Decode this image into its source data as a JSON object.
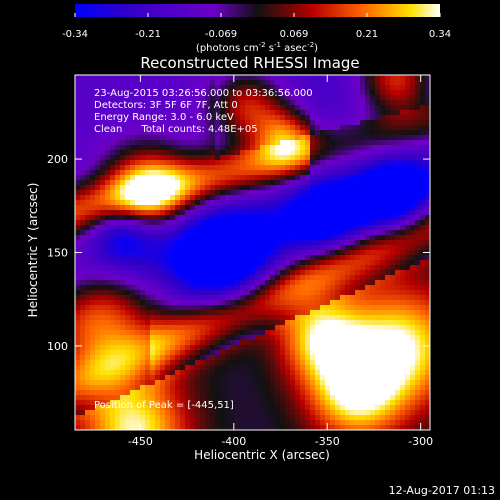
{
  "chart_data": {
    "type": "heatmap",
    "title": "Reconstructed RHESSI Image",
    "xlabel": "Heliocentric X (arcsec)",
    "ylabel": "Heliocentric Y (arcsec)",
    "xlim": [
      -485,
      -295
    ],
    "ylim": [
      55,
      245
    ],
    "xticks": [
      -450,
      -400,
      -350,
      -300
    ],
    "yticks": [
      100,
      150,
      200
    ],
    "colorbar": {
      "min": -0.34,
      "max": 0.34,
      "ticks": [
        "-0.34",
        "-0.21",
        "-0.069",
        "0.069",
        "0.21",
        "0.34"
      ],
      "label_base": "(photons cm",
      "label_exp1": "-2",
      "label_mid": " s",
      "label_exp2": "-1",
      "label_end": " asec",
      "label_exp3": "-2",
      "label_close": ")",
      "colormap": "purple-blue-red-yellow-white"
    },
    "info_lines": [
      "23-Aug-2015 03:26:56.000 to 03:36:56.000",
      "Detectors: 3F 5F 6F 7F, Att 0",
      "Energy Range: 3.0 - 6.0 keV",
      "Clean      Total counts: 4.48E+05"
    ],
    "peak_annotation": "Position of Peak = [-445,51]",
    "features": {
      "bright_upper_left_lobes": [
        [
          -447,
          185,
          16,
          0.34
        ],
        [
          -393,
          228,
          14,
          0.3
        ],
        [
          -373,
          213,
          11,
          0.27
        ],
        [
          -313,
          243,
          14,
          0.32
        ]
      ],
      "bright_lower_right_lobes": [
        [
          -473,
          115,
          22,
          0.34
        ],
        [
          -453,
          55,
          20,
          0.34
        ],
        [
          -353,
          105,
          16,
          0.3
        ],
        [
          -310,
          100,
          22,
          0.34
        ],
        [
          -335,
          75,
          18,
          0.34
        ]
      ],
      "negative_trough_centers": [
        [
          -460,
          162,
          12,
          -0.24
        ],
        [
          -405,
          145,
          18,
          -0.34
        ],
        [
          -350,
          170,
          14,
          -0.26
        ],
        [
          -315,
          180,
          14,
          -0.32
        ]
      ]
    }
  },
  "footer": {
    "timestamp": "12-Aug-2017 01:13"
  }
}
